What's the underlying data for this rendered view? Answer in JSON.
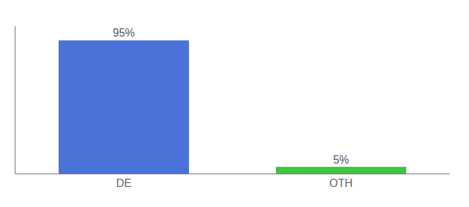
{
  "chart_data": {
    "type": "bar",
    "categories": [
      "DE",
      "OTH"
    ],
    "values": [
      95,
      5
    ],
    "value_labels": [
      "95%",
      "5%"
    ],
    "colors": [
      "#4a72d9",
      "#3ec63e"
    ],
    "ylim": [
      0,
      105
    ],
    "data_labels": true,
    "tick_labels": "x"
  }
}
